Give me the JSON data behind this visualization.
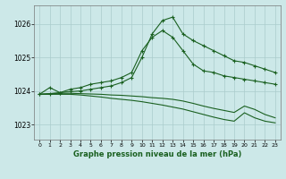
{
  "title": "Graphe pression niveau de la mer (hPa)",
  "background_color": "#cce8e8",
  "grid_color": "#aacccc",
  "line_color": "#1a6020",
  "x_ticks": [
    0,
    1,
    2,
    3,
    4,
    5,
    6,
    7,
    8,
    9,
    10,
    11,
    12,
    13,
    14,
    15,
    16,
    17,
    18,
    19,
    20,
    21,
    22,
    23
  ],
  "y_ticks": [
    1023,
    1024,
    1025,
    1026
  ],
  "ylim": [
    1022.55,
    1026.55
  ],
  "xlim": [
    -0.5,
    23.5
  ],
  "series": [
    {
      "x": [
        0,
        1,
        2,
        3,
        4,
        5,
        6,
        7,
        8,
        9,
        10,
        11,
        12,
        13,
        14,
        15,
        16,
        17,
        18,
        19,
        20,
        21,
        22,
        23
      ],
      "y": [
        1023.9,
        1024.1,
        1023.95,
        1024.05,
        1024.1,
        1024.2,
        1024.25,
        1024.3,
        1024.4,
        1024.55,
        1025.2,
        1025.6,
        1025.8,
        1025.6,
        1025.2,
        1024.8,
        1024.6,
        1024.55,
        1024.45,
        1024.4,
        1024.35,
        1024.3,
        1024.25,
        1024.2
      ],
      "marker": true
    },
    {
      "x": [
        0,
        1,
        2,
        3,
        4,
        5,
        6,
        7,
        8,
        9,
        10,
        11,
        12,
        13,
        14,
        15,
        16,
        17,
        18,
        19,
        20,
        21,
        22,
        23
      ],
      "y": [
        1023.9,
        1023.92,
        1023.95,
        1023.98,
        1024.0,
        1024.05,
        1024.1,
        1024.15,
        1024.25,
        1024.4,
        1025.0,
        1025.7,
        1026.1,
        1026.2,
        1025.7,
        1025.5,
        1025.35,
        1025.2,
        1025.05,
        1024.9,
        1024.85,
        1024.75,
        1024.65,
        1024.55
      ],
      "marker": true
    },
    {
      "x": [
        0,
        1,
        2,
        3,
        4,
        5,
        6,
        7,
        8,
        9,
        10,
        11,
        12,
        13,
        14,
        15,
        16,
        17,
        18,
        19,
        20,
        21,
        22,
        23
      ],
      "y": [
        1023.9,
        1023.92,
        1023.93,
        1023.93,
        1023.92,
        1023.91,
        1023.9,
        1023.88,
        1023.87,
        1023.85,
        1023.83,
        1023.8,
        1023.78,
        1023.75,
        1023.7,
        1023.63,
        1023.55,
        1023.48,
        1023.42,
        1023.36,
        1023.55,
        1023.45,
        1023.3,
        1023.2
      ],
      "marker": false
    },
    {
      "x": [
        0,
        1,
        2,
        3,
        4,
        5,
        6,
        7,
        8,
        9,
        10,
        11,
        12,
        13,
        14,
        15,
        16,
        17,
        18,
        19,
        20,
        21,
        22,
        23
      ],
      "y": [
        1023.9,
        1023.9,
        1023.9,
        1023.9,
        1023.88,
        1023.85,
        1023.82,
        1023.78,
        1023.75,
        1023.72,
        1023.68,
        1023.63,
        1023.58,
        1023.52,
        1023.46,
        1023.38,
        1023.3,
        1023.22,
        1023.15,
        1023.1,
        1023.35,
        1023.2,
        1023.1,
        1023.05
      ],
      "marker": false
    }
  ]
}
